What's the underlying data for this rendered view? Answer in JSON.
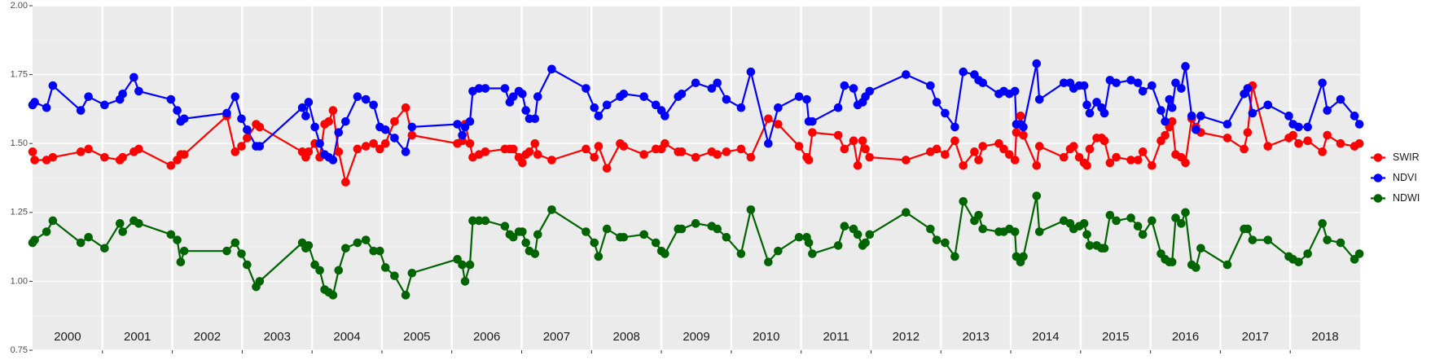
{
  "chart_data": {
    "type": "line",
    "x": [
      2000.0,
      2000.03,
      2000.2,
      2000.29,
      2000.69,
      2000.8,
      2001.03,
      2001.25,
      2001.29,
      2001.45,
      2001.52,
      2001.98,
      2002.07,
      2002.12,
      2002.17,
      2002.78,
      2002.9,
      2002.99,
      2003.07,
      2003.2,
      2003.25,
      2003.86,
      2003.91,
      2003.95,
      2004.04,
      2004.11,
      2004.18,
      2004.24,
      2004.3,
      2004.38,
      2004.48,
      2004.65,
      2004.77,
      2004.88,
      2004.97,
      2005.05,
      2005.18,
      2005.34,
      2005.43,
      2006.08,
      2006.15,
      2006.19,
      2006.26,
      2006.3,
      2006.39,
      2006.48,
      2006.76,
      2006.83,
      2006.88,
      2006.96,
      2007.01,
      2007.06,
      2007.11,
      2007.19,
      2007.23,
      2007.43,
      2007.92,
      2008.04,
      2008.1,
      2008.22,
      2008.41,
      2008.46,
      2008.75,
      2008.92,
      2009.0,
      2009.05,
      2009.24,
      2009.29,
      2009.49,
      2009.72,
      2009.8,
      2009.93,
      2010.14,
      2010.28,
      2010.53,
      2010.67,
      2010.97,
      2011.08,
      2011.11,
      2011.16,
      2011.53,
      2011.62,
      2011.75,
      2011.81,
      2011.88,
      2011.92,
      2011.98,
      2012.5,
      2012.85,
      2012.94,
      2013.06,
      2013.2,
      2013.32,
      2013.48,
      2013.54,
      2013.6,
      2013.83,
      2013.9,
      2013.98,
      2014.06,
      2014.08,
      2014.14,
      2014.18,
      2014.37,
      2014.41,
      2014.76,
      2014.85,
      2014.9,
      2014.98,
      2015.05,
      2015.09,
      2015.13,
      2015.23,
      2015.3,
      2015.34,
      2015.42,
      2015.51,
      2015.72,
      2015.82,
      2015.89,
      2016.02,
      2016.15,
      2016.21,
      2016.27,
      2016.31,
      2016.36,
      2016.44,
      2016.5,
      2016.59,
      2016.65,
      2016.72,
      2017.1,
      2017.34,
      2017.39,
      2017.46,
      2017.68,
      2017.98,
      2018.04,
      2018.12,
      2018.25,
      2018.46,
      2018.53,
      2018.72,
      2018.92,
      2018.99
    ],
    "series": [
      {
        "name": "SWIR",
        "color": "#ff0000",
        "values": [
          1.47,
          1.44,
          1.44,
          1.45,
          1.47,
          1.48,
          1.45,
          1.44,
          1.45,
          1.47,
          1.48,
          1.42,
          1.44,
          1.46,
          1.46,
          1.6,
          1.47,
          1.49,
          1.52,
          1.57,
          1.56,
          1.47,
          1.45,
          1.47,
          1.5,
          1.45,
          1.57,
          1.58,
          1.62,
          1.47,
          1.36,
          1.48,
          1.49,
          1.5,
          1.48,
          1.5,
          1.58,
          1.63,
          1.53,
          1.5,
          1.51,
          1.57,
          1.5,
          1.45,
          1.46,
          1.47,
          1.48,
          1.48,
          1.48,
          1.45,
          1.43,
          1.46,
          1.47,
          1.5,
          1.46,
          1.44,
          1.48,
          1.45,
          1.49,
          1.41,
          1.5,
          1.49,
          1.46,
          1.48,
          1.48,
          1.5,
          1.47,
          1.47,
          1.45,
          1.47,
          1.46,
          1.47,
          1.48,
          1.45,
          1.59,
          1.57,
          1.49,
          1.45,
          1.44,
          1.54,
          1.53,
          1.48,
          1.51,
          1.42,
          1.51,
          1.48,
          1.45,
          1.44,
          1.47,
          1.48,
          1.46,
          1.51,
          1.42,
          1.47,
          1.44,
          1.49,
          1.5,
          1.48,
          1.46,
          1.44,
          1.54,
          1.6,
          1.53,
          1.42,
          1.49,
          1.45,
          1.48,
          1.49,
          1.45,
          1.43,
          1.42,
          1.48,
          1.52,
          1.52,
          1.51,
          1.43,
          1.45,
          1.44,
          1.44,
          1.47,
          1.42,
          1.51,
          1.53,
          1.56,
          1.58,
          1.46,
          1.45,
          1.43,
          1.59,
          1.56,
          1.54,
          1.52,
          1.48,
          1.54,
          1.71,
          1.49,
          1.52,
          1.53,
          1.5,
          1.51,
          1.47,
          1.53,
          1.5,
          1.49,
          1.5
        ]
      },
      {
        "name": "NDVI",
        "color": "#0000ff",
        "values": [
          1.64,
          1.65,
          1.63,
          1.71,
          1.62,
          1.67,
          1.64,
          1.66,
          1.68,
          1.74,
          1.69,
          1.66,
          1.62,
          1.58,
          1.59,
          1.61,
          1.67,
          1.59,
          1.55,
          1.49,
          1.49,
          1.63,
          1.6,
          1.65,
          1.56,
          1.5,
          1.46,
          1.45,
          1.44,
          1.54,
          1.58,
          1.67,
          1.66,
          1.64,
          1.56,
          1.55,
          1.52,
          1.47,
          1.56,
          1.57,
          1.53,
          1.56,
          1.58,
          1.69,
          1.7,
          1.7,
          1.7,
          1.65,
          1.67,
          1.69,
          1.68,
          1.62,
          1.59,
          1.59,
          1.67,
          1.77,
          1.7,
          1.63,
          1.6,
          1.64,
          1.67,
          1.68,
          1.67,
          1.64,
          1.62,
          1.6,
          1.67,
          1.68,
          1.72,
          1.7,
          1.72,
          1.66,
          1.63,
          1.76,
          1.5,
          1.63,
          1.67,
          1.66,
          1.58,
          1.58,
          1.63,
          1.71,
          1.7,
          1.64,
          1.65,
          1.67,
          1.69,
          1.75,
          1.71,
          1.65,
          1.61,
          1.56,
          1.76,
          1.75,
          1.73,
          1.72,
          1.68,
          1.69,
          1.68,
          1.69,
          1.57,
          1.57,
          1.56,
          1.79,
          1.66,
          1.72,
          1.72,
          1.7,
          1.71,
          1.71,
          1.64,
          1.61,
          1.65,
          1.63,
          1.61,
          1.73,
          1.72,
          1.73,
          1.72,
          1.69,
          1.71,
          1.62,
          1.58,
          1.66,
          1.63,
          1.72,
          1.7,
          1.78,
          1.6,
          1.55,
          1.6,
          1.57,
          1.68,
          1.7,
          1.61,
          1.64,
          1.6,
          1.57,
          1.56,
          1.56,
          1.72,
          1.62,
          1.66,
          1.6,
          1.57
        ]
      },
      {
        "name": "NDWI",
        "color": "#006400",
        "values": [
          1.14,
          1.15,
          1.18,
          1.22,
          1.14,
          1.16,
          1.12,
          1.21,
          1.18,
          1.22,
          1.21,
          1.17,
          1.15,
          1.07,
          1.11,
          1.11,
          1.14,
          1.1,
          1.06,
          0.98,
          1.0,
          1.14,
          1.12,
          1.13,
          1.06,
          1.04,
          0.97,
          0.96,
          0.95,
          1.04,
          1.12,
          1.14,
          1.15,
          1.11,
          1.11,
          1.05,
          1.02,
          0.95,
          1.03,
          1.08,
          1.06,
          1.0,
          1.06,
          1.22,
          1.22,
          1.22,
          1.2,
          1.17,
          1.16,
          1.18,
          1.18,
          1.14,
          1.11,
          1.1,
          1.17,
          1.26,
          1.18,
          1.14,
          1.09,
          1.19,
          1.16,
          1.16,
          1.17,
          1.14,
          1.11,
          1.1,
          1.19,
          1.19,
          1.21,
          1.2,
          1.19,
          1.16,
          1.1,
          1.26,
          1.07,
          1.11,
          1.16,
          1.16,
          1.14,
          1.1,
          1.13,
          1.2,
          1.19,
          1.17,
          1.13,
          1.14,
          1.17,
          1.25,
          1.19,
          1.15,
          1.14,
          1.09,
          1.29,
          1.22,
          1.24,
          1.19,
          1.18,
          1.18,
          1.19,
          1.18,
          1.09,
          1.07,
          1.09,
          1.31,
          1.18,
          1.22,
          1.21,
          1.19,
          1.2,
          1.21,
          1.17,
          1.13,
          1.13,
          1.12,
          1.12,
          1.24,
          1.22,
          1.23,
          1.2,
          1.17,
          1.22,
          1.1,
          1.08,
          1.07,
          1.07,
          1.23,
          1.21,
          1.25,
          1.06,
          1.05,
          1.12,
          1.06,
          1.19,
          1.19,
          1.15,
          1.15,
          1.09,
          1.08,
          1.07,
          1.1,
          1.21,
          1.15,
          1.14,
          1.08,
          1.1
        ]
      }
    ],
    "xlim": [
      2000,
      2019
    ],
    "xticks": [
      {
        "value": 2000.5,
        "label": "2000"
      },
      {
        "value": 2001.5,
        "label": "2001"
      },
      {
        "value": 2002.5,
        "label": "2002"
      },
      {
        "value": 2003.5,
        "label": "2003"
      },
      {
        "value": 2004.5,
        "label": "2004"
      },
      {
        "value": 2005.5,
        "label": "2005"
      },
      {
        "value": 2006.5,
        "label": "2006"
      },
      {
        "value": 2007.5,
        "label": "2007"
      },
      {
        "value": 2008.5,
        "label": "2008"
      },
      {
        "value": 2009.5,
        "label": "2009"
      },
      {
        "value": 2010.5,
        "label": "2010"
      },
      {
        "value": 2011.5,
        "label": "2011"
      },
      {
        "value": 2012.5,
        "label": "2012"
      },
      {
        "value": 2013.5,
        "label": "2013"
      },
      {
        "value": 2014.5,
        "label": "2014"
      },
      {
        "value": 2015.5,
        "label": "2015"
      },
      {
        "value": 2016.5,
        "label": "2016"
      },
      {
        "value": 2017.5,
        "label": "2017"
      },
      {
        "value": 2018.5,
        "label": "2018"
      }
    ],
    "xgrid": [
      2001,
      2002,
      2003,
      2004,
      2005,
      2006,
      2007,
      2008,
      2009,
      2010,
      2011,
      2012,
      2013,
      2014,
      2015,
      2016,
      2017,
      2018
    ],
    "ylim": [
      0.75,
      2.0
    ],
    "yticks": [
      {
        "value": 0.75,
        "label": "0.75"
      },
      {
        "value": 1.0,
        "label": "1.00"
      },
      {
        "value": 1.25,
        "label": "1.25"
      },
      {
        "value": 1.5,
        "label": "1.50"
      },
      {
        "value": 1.75,
        "label": "1.75"
      },
      {
        "value": 2.0,
        "label": "2.00"
      }
    ],
    "grid": true,
    "legend": "right"
  }
}
